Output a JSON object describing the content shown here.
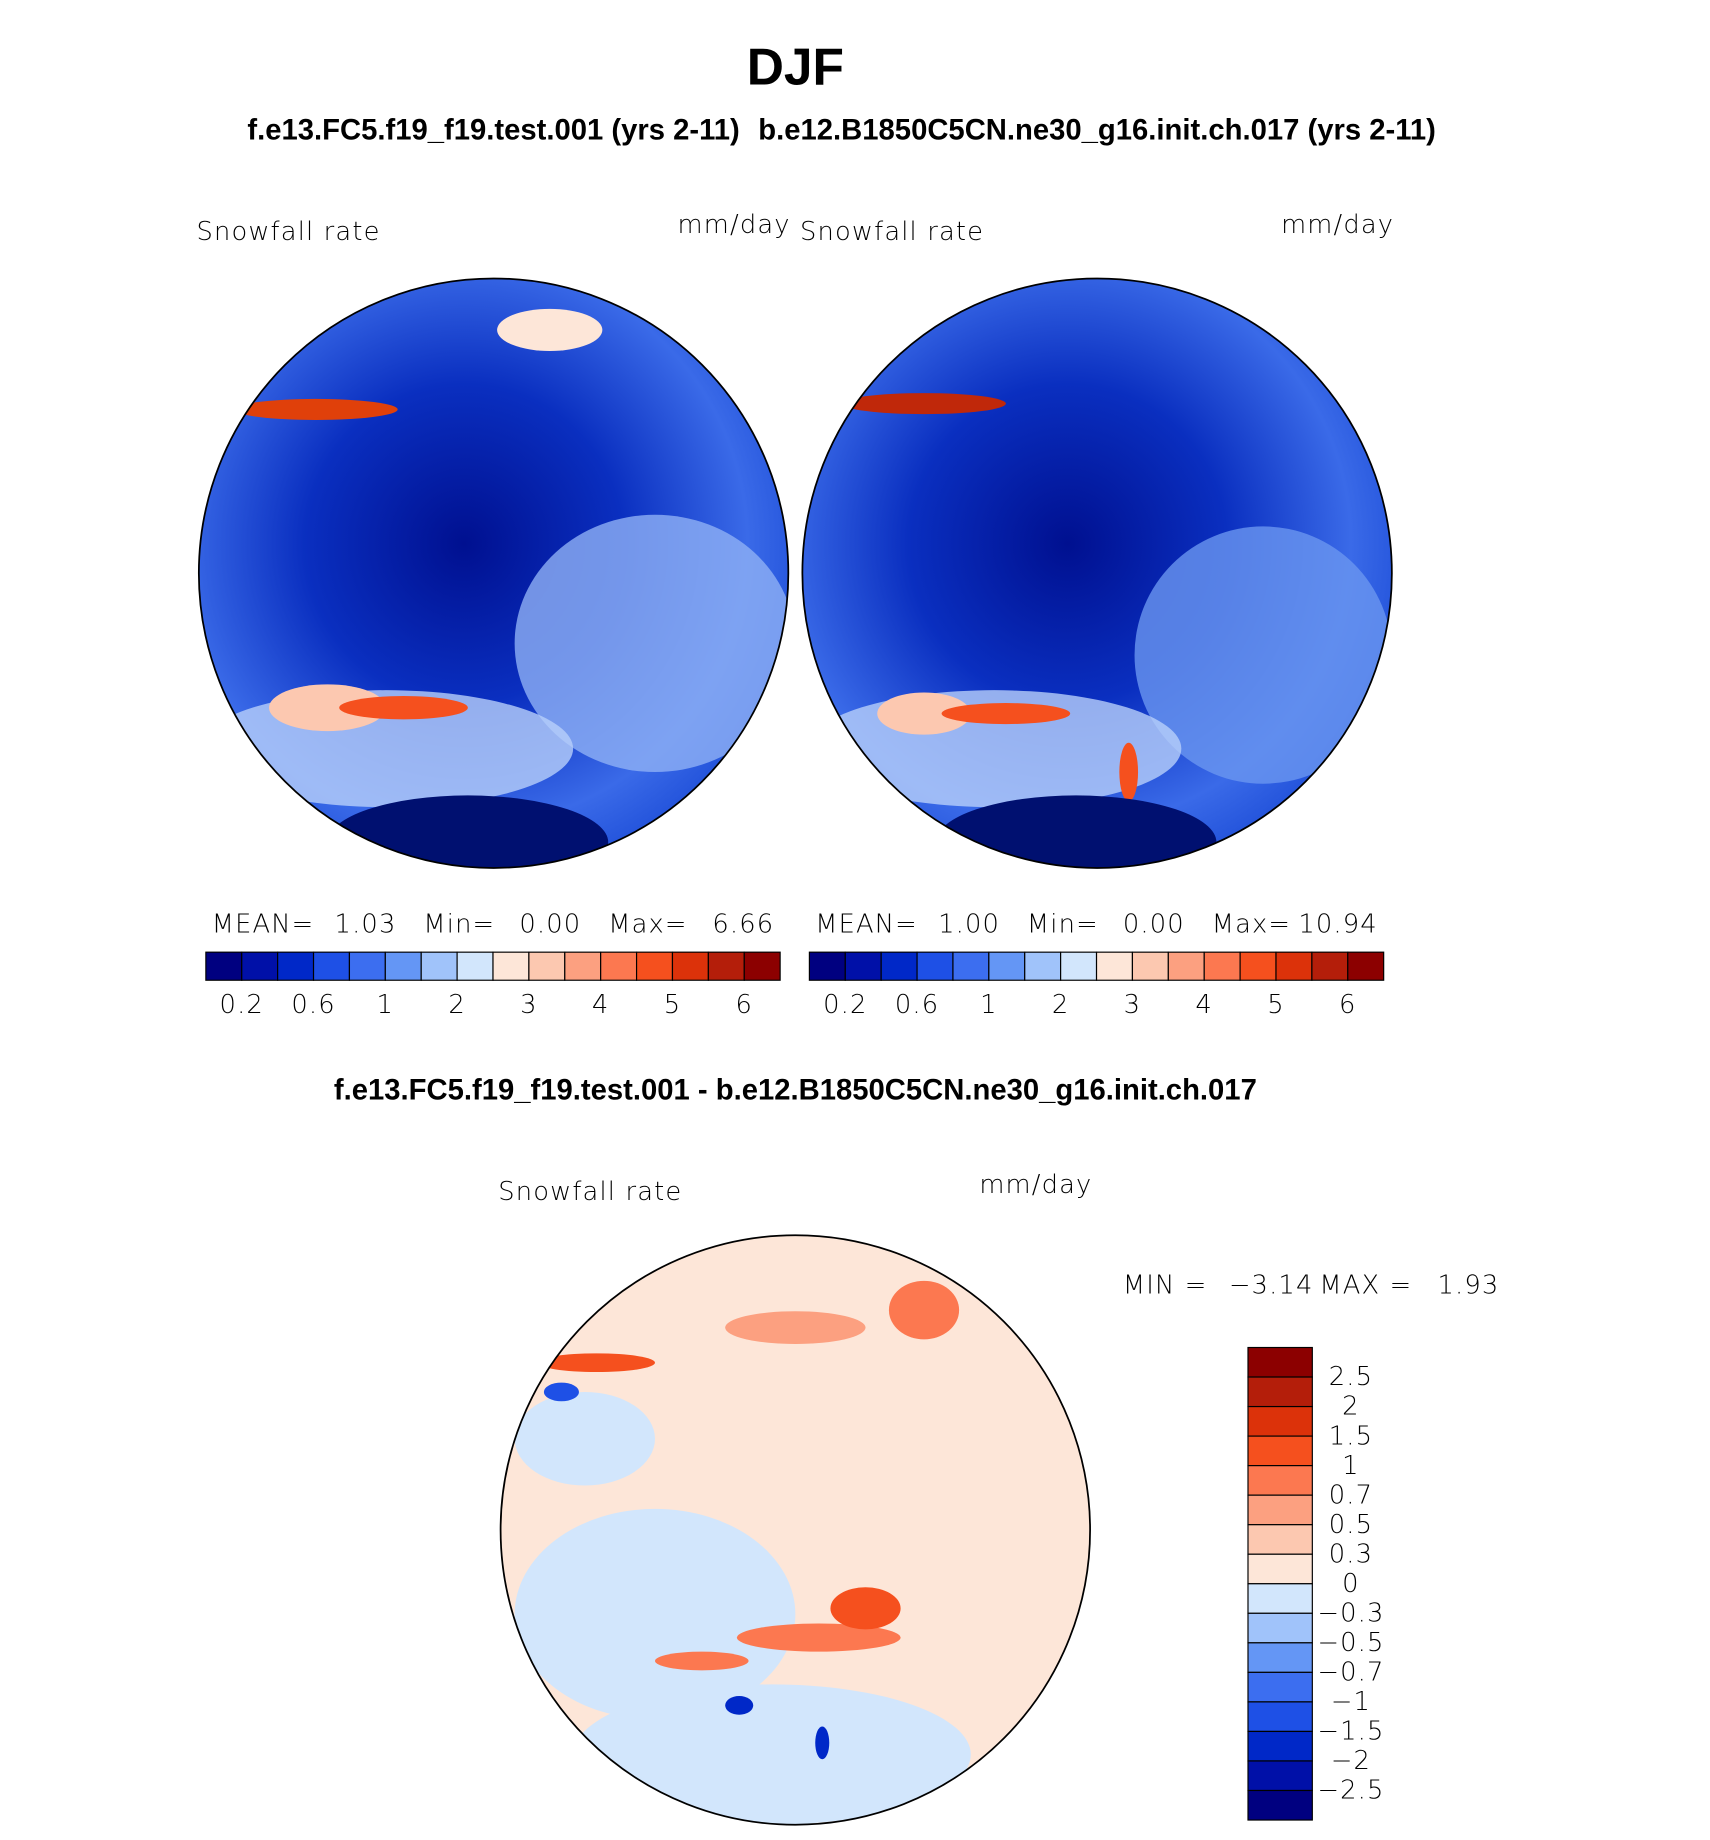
{
  "title": "DJF",
  "panels": [
    {
      "subtitle": "f.e13.FC5.f19_f19.test.001 (yrs 2-11)",
      "variable": "Snowfall rate",
      "units": "mm/day",
      "stats": [
        "MEAN=",
        "1.03",
        "Min=",
        "0.00",
        "Max=",
        "6.66"
      ],
      "colorbar": {
        "labels": [
          "0.2",
          "0.6",
          "1",
          "2",
          "3",
          "4",
          "5",
          "6"
        ],
        "colors": [
          "#000080",
          "#0010a8",
          "#0028c8",
          "#1e50e6",
          "#3c6ef0",
          "#6496f5",
          "#a0c3fa",
          "#d2e6fc",
          "#fde6d8",
          "#fcc8b0",
          "#fca080",
          "#fc7850",
          "#f5501e",
          "#dc320a",
          "#b41e0a",
          "#8c0000"
        ]
      }
    },
    {
      "subtitle": "b.e12.B1850C5CN.ne30_g16.init.ch.017 (yrs 2-11)",
      "variable": "Snowfall rate",
      "units": "mm/day",
      "stats": [
        "MEAN=",
        "1.00",
        "Min=",
        "0.00",
        "Max=",
        "10.94"
      ],
      "colorbar": {
        "labels": [
          "0.2",
          "0.6",
          "1",
          "2",
          "3",
          "4",
          "5",
          "6"
        ],
        "colors": [
          "#000080",
          "#0010a8",
          "#0028c8",
          "#1e50e6",
          "#3c6ef0",
          "#6496f5",
          "#a0c3fa",
          "#d2e6fc",
          "#fde6d8",
          "#fcc8b0",
          "#fca080",
          "#fc7850",
          "#f5501e",
          "#dc320a",
          "#b41e0a",
          "#8c0000"
        ]
      }
    }
  ],
  "difference": {
    "subtitle": "f.e13.FC5.f19_f19.test.001 - b.e12.B1850C5CN.ne30_g16.init.ch.017",
    "variable": "Snowfall rate",
    "units": "mm/day",
    "stats": [
      "MIN =",
      "−3.14",
      "MAX =",
      "1.93"
    ],
    "colorbar": {
      "labels": [
        "2.5",
        "2",
        "1.5",
        "1",
        "0.7",
        "0.5",
        "0.3",
        "0",
        "−0.3",
        "−0.5",
        "−0.7",
        "−1",
        "−1.5",
        "−2",
        "−2.5"
      ],
      "colors": [
        "#8c0000",
        "#b41e0a",
        "#dc320a",
        "#f5501e",
        "#fc7850",
        "#fca080",
        "#fcc8b0",
        "#fde6d8",
        "#d2e6fc",
        "#a0c3fa",
        "#6496f5",
        "#3c6ef0",
        "#1e50e6",
        "#0028c8",
        "#0010a8",
        "#000080"
      ]
    }
  }
}
